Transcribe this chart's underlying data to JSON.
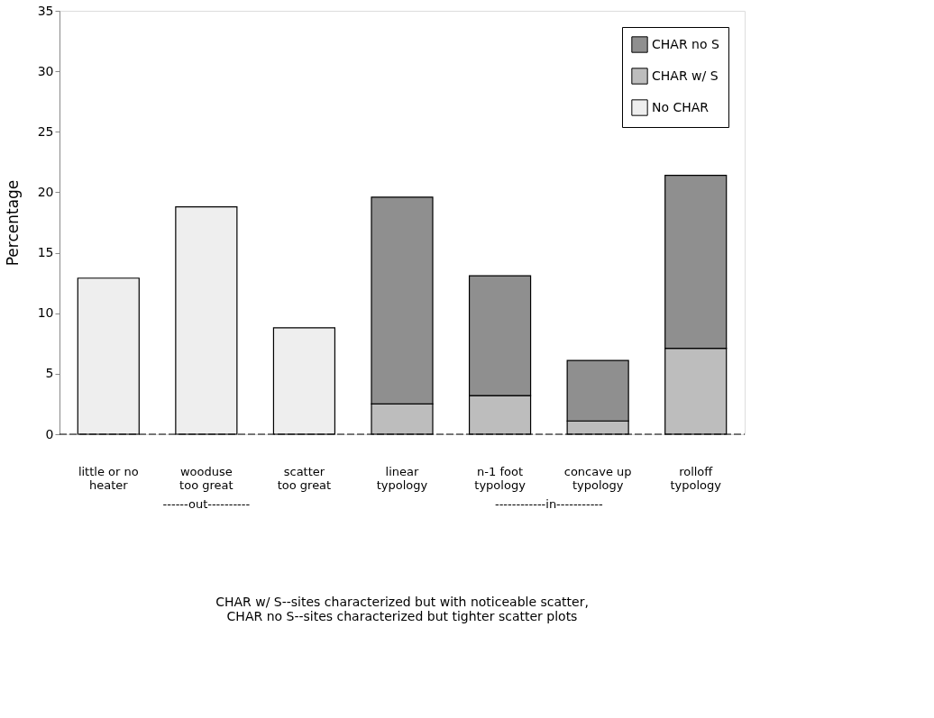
{
  "chart_data": {
    "type": "bar",
    "ylabel": "Percentage",
    "stacked": true,
    "categories": [
      "little or no\nheater",
      "wooduse\ntoo great",
      "scatter\ntoo great",
      "linear\ntypology",
      "n-1 foot\ntypology",
      "concave up\ntypology",
      "rolloff\ntypology"
    ],
    "series": [
      {
        "name": "No CHAR",
        "color": "#eeeeee",
        "values": [
          12.9,
          18.8,
          8.8,
          null,
          null,
          null,
          null
        ]
      },
      {
        "name": "CHAR w/ S",
        "color": "#bdbdbd",
        "values": [
          null,
          null,
          null,
          2.5,
          3.2,
          1.1,
          7.1
        ]
      },
      {
        "name": "CHAR no S",
        "color": "#8f8f8f",
        "values": [
          null,
          null,
          null,
          17.1,
          9.9,
          5.0,
          14.3
        ]
      }
    ],
    "ylim": [
      0,
      35
    ],
    "yticks": [
      0,
      5,
      10,
      15,
      20,
      25,
      30,
      35
    ],
    "grid": false,
    "legend": "top right",
    "annotations": [
      "------out----------",
      "------------in-----------",
      "CHAR w/ S--sites characterized but with noticeable scatter,",
      "CHAR no S--sites characterized but tighter scatter plots"
    ]
  }
}
